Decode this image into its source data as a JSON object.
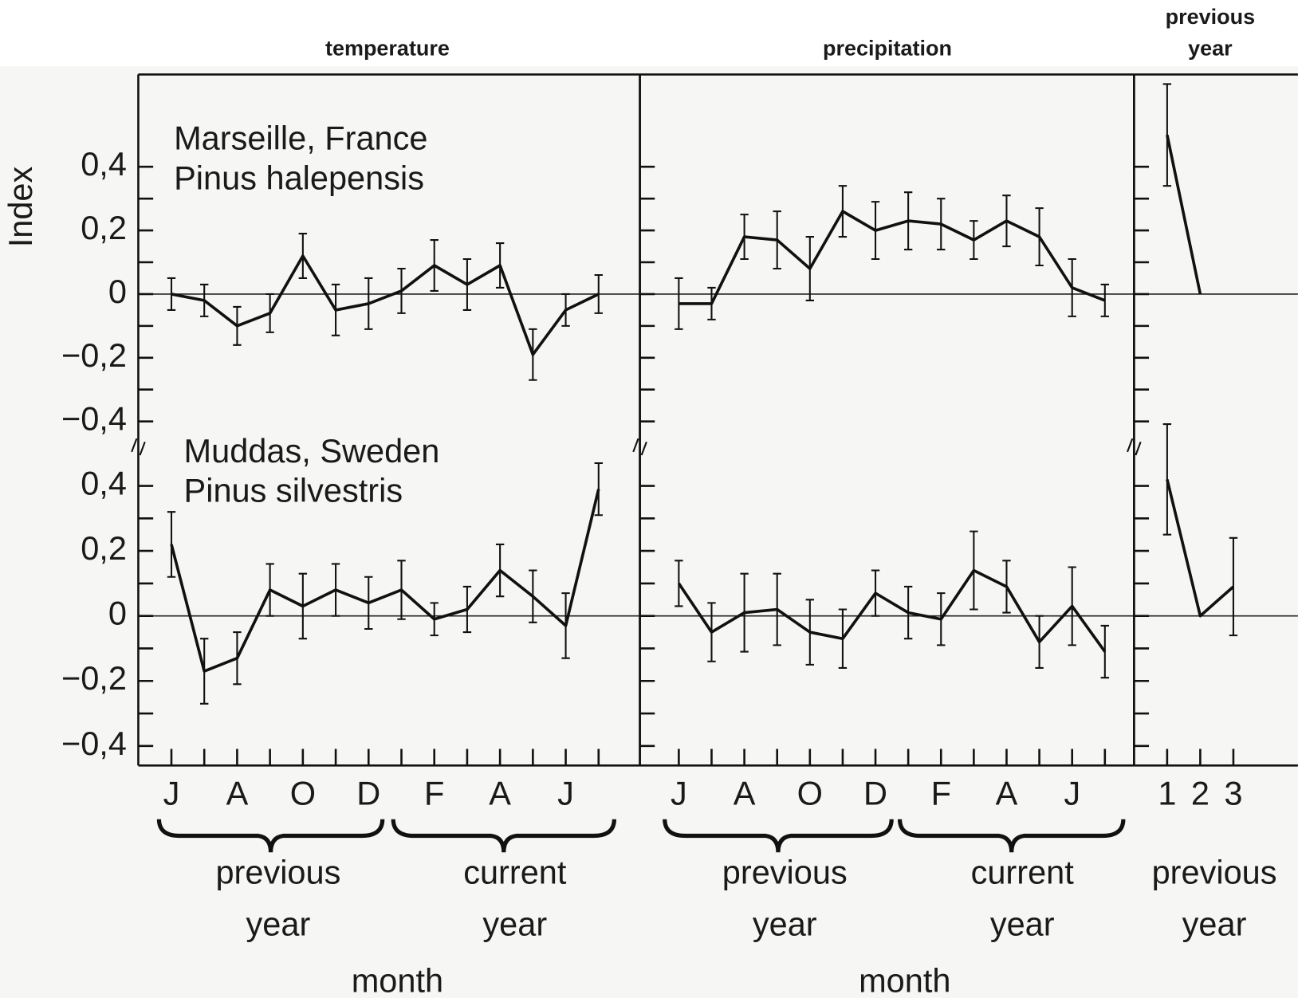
{
  "column_titles": [
    [
      "temperature"
    ],
    [
      "precipitation"
    ],
    [
      "previous",
      "year"
    ]
  ],
  "y_label": "Index",
  "chart_data": [
    {
      "type": "line",
      "color": "#111111",
      "categories": [
        "J",
        null,
        "A",
        null,
        "O",
        null,
        "D",
        null,
        "F",
        null,
        "A",
        null,
        "J",
        null
      ],
      "yticks": [
        {
          "value": 0.4,
          "label": "0,4"
        },
        {
          "value": 0.2,
          "label": "0,2"
        },
        0,
        {
          "value": -0.2,
          "label": "−0,2"
        },
        {
          "value": -0.4,
          "label": "−0,4"
        }
      ],
      "yminor": [
        0.3,
        0.1,
        -0.1,
        -0.3
      ],
      "xlabel": "month",
      "x_groups": [
        [
          "previous",
          "year"
        ],
        [
          "current",
          "year"
        ]
      ],
      "panels": [
        {
          "annotation": [
            "Marseille, France",
            "Pinus halepensis"
          ],
          "ylim": [
            -0.48,
            0.69
          ],
          "values": [
            0,
            -0.02,
            -0.1,
            -0.06,
            0.12,
            -0.05,
            -0.03,
            0.01,
            0.09,
            0.03,
            0.09,
            -0.19,
            -0.05,
            0
          ],
          "errors": [
            0.05,
            0.05,
            0.06,
            0.06,
            0.07,
            0.08,
            0.08,
            0.07,
            0.08,
            0.08,
            0.07,
            0.08,
            0.05,
            0.06
          ]
        },
        {
          "annotation": [
            "Muddas, Sweden",
            "Pinus silvestris"
          ],
          "ylim": [
            -0.46,
            0.52
          ],
          "values": [
            0.22,
            -0.17,
            -0.13,
            0.08,
            0.03,
            0.08,
            0.04,
            0.08,
            -0.01,
            0.02,
            0.14,
            0.06,
            -0.03,
            0.39
          ],
          "errors": [
            0.1,
            0.1,
            0.08,
            0.08,
            0.1,
            0.08,
            0.08,
            0.09,
            0.05,
            0.07,
            0.08,
            0.08,
            0.1,
            0.08
          ]
        }
      ]
    },
    {
      "type": "line",
      "color": "#111111",
      "categories": [
        "J",
        null,
        "A",
        null,
        "O",
        null,
        "D",
        null,
        "F",
        null,
        "A",
        null,
        "J",
        null
      ],
      "yminor": [
        0.4,
        0.3,
        0.2,
        0.1,
        0,
        -0.1,
        -0.2,
        -0.3,
        -0.4
      ],
      "xlabel": "month",
      "x_groups": [
        [
          "previous",
          "year"
        ],
        [
          "current",
          "year"
        ]
      ],
      "panels": [
        {
          "ylim": [
            -0.48,
            0.69
          ],
          "values": [
            -0.03,
            -0.03,
            0.18,
            0.17,
            0.08,
            0.26,
            0.2,
            0.23,
            0.22,
            0.17,
            0.23,
            0.18,
            0.02,
            -0.02
          ],
          "errors": [
            0.08,
            0.05,
            0.07,
            0.09,
            0.1,
            0.08,
            0.09,
            0.09,
            0.08,
            0.06,
            0.08,
            0.09,
            0.09,
            0.05
          ]
        },
        {
          "ylim": [
            -0.46,
            0.52
          ],
          "values": [
            0.1,
            -0.05,
            0.01,
            0.02,
            -0.05,
            -0.07,
            0.07,
            0.01,
            -0.01,
            0.14,
            0.09,
            -0.08,
            0.03,
            -0.11
          ],
          "errors": [
            0.07,
            0.09,
            0.12,
            0.11,
            0.1,
            0.09,
            0.07,
            0.08,
            0.08,
            0.12,
            0.08,
            0.08,
            0.12,
            0.08
          ]
        }
      ]
    },
    {
      "type": "line",
      "color": "#111111",
      "categories": [
        "1",
        "2",
        "3"
      ],
      "yminor": [
        0.4,
        0.3,
        0.2,
        0.1,
        0,
        -0.1,
        -0.2,
        -0.3,
        -0.4
      ],
      "x_groups": [
        [
          "previous",
          "year"
        ]
      ],
      "panels": [
        {
          "ylim": [
            -0.48,
            0.69
          ],
          "values": [
            0.5,
            0,
            null
          ],
          "errors": [
            0.16,
            null,
            null
          ]
        },
        {
          "ylim": [
            -0.46,
            0.52
          ],
          "values": [
            0.42,
            0,
            0.09
          ],
          "errors": [
            0.17,
            null,
            0.15
          ]
        }
      ]
    }
  ]
}
